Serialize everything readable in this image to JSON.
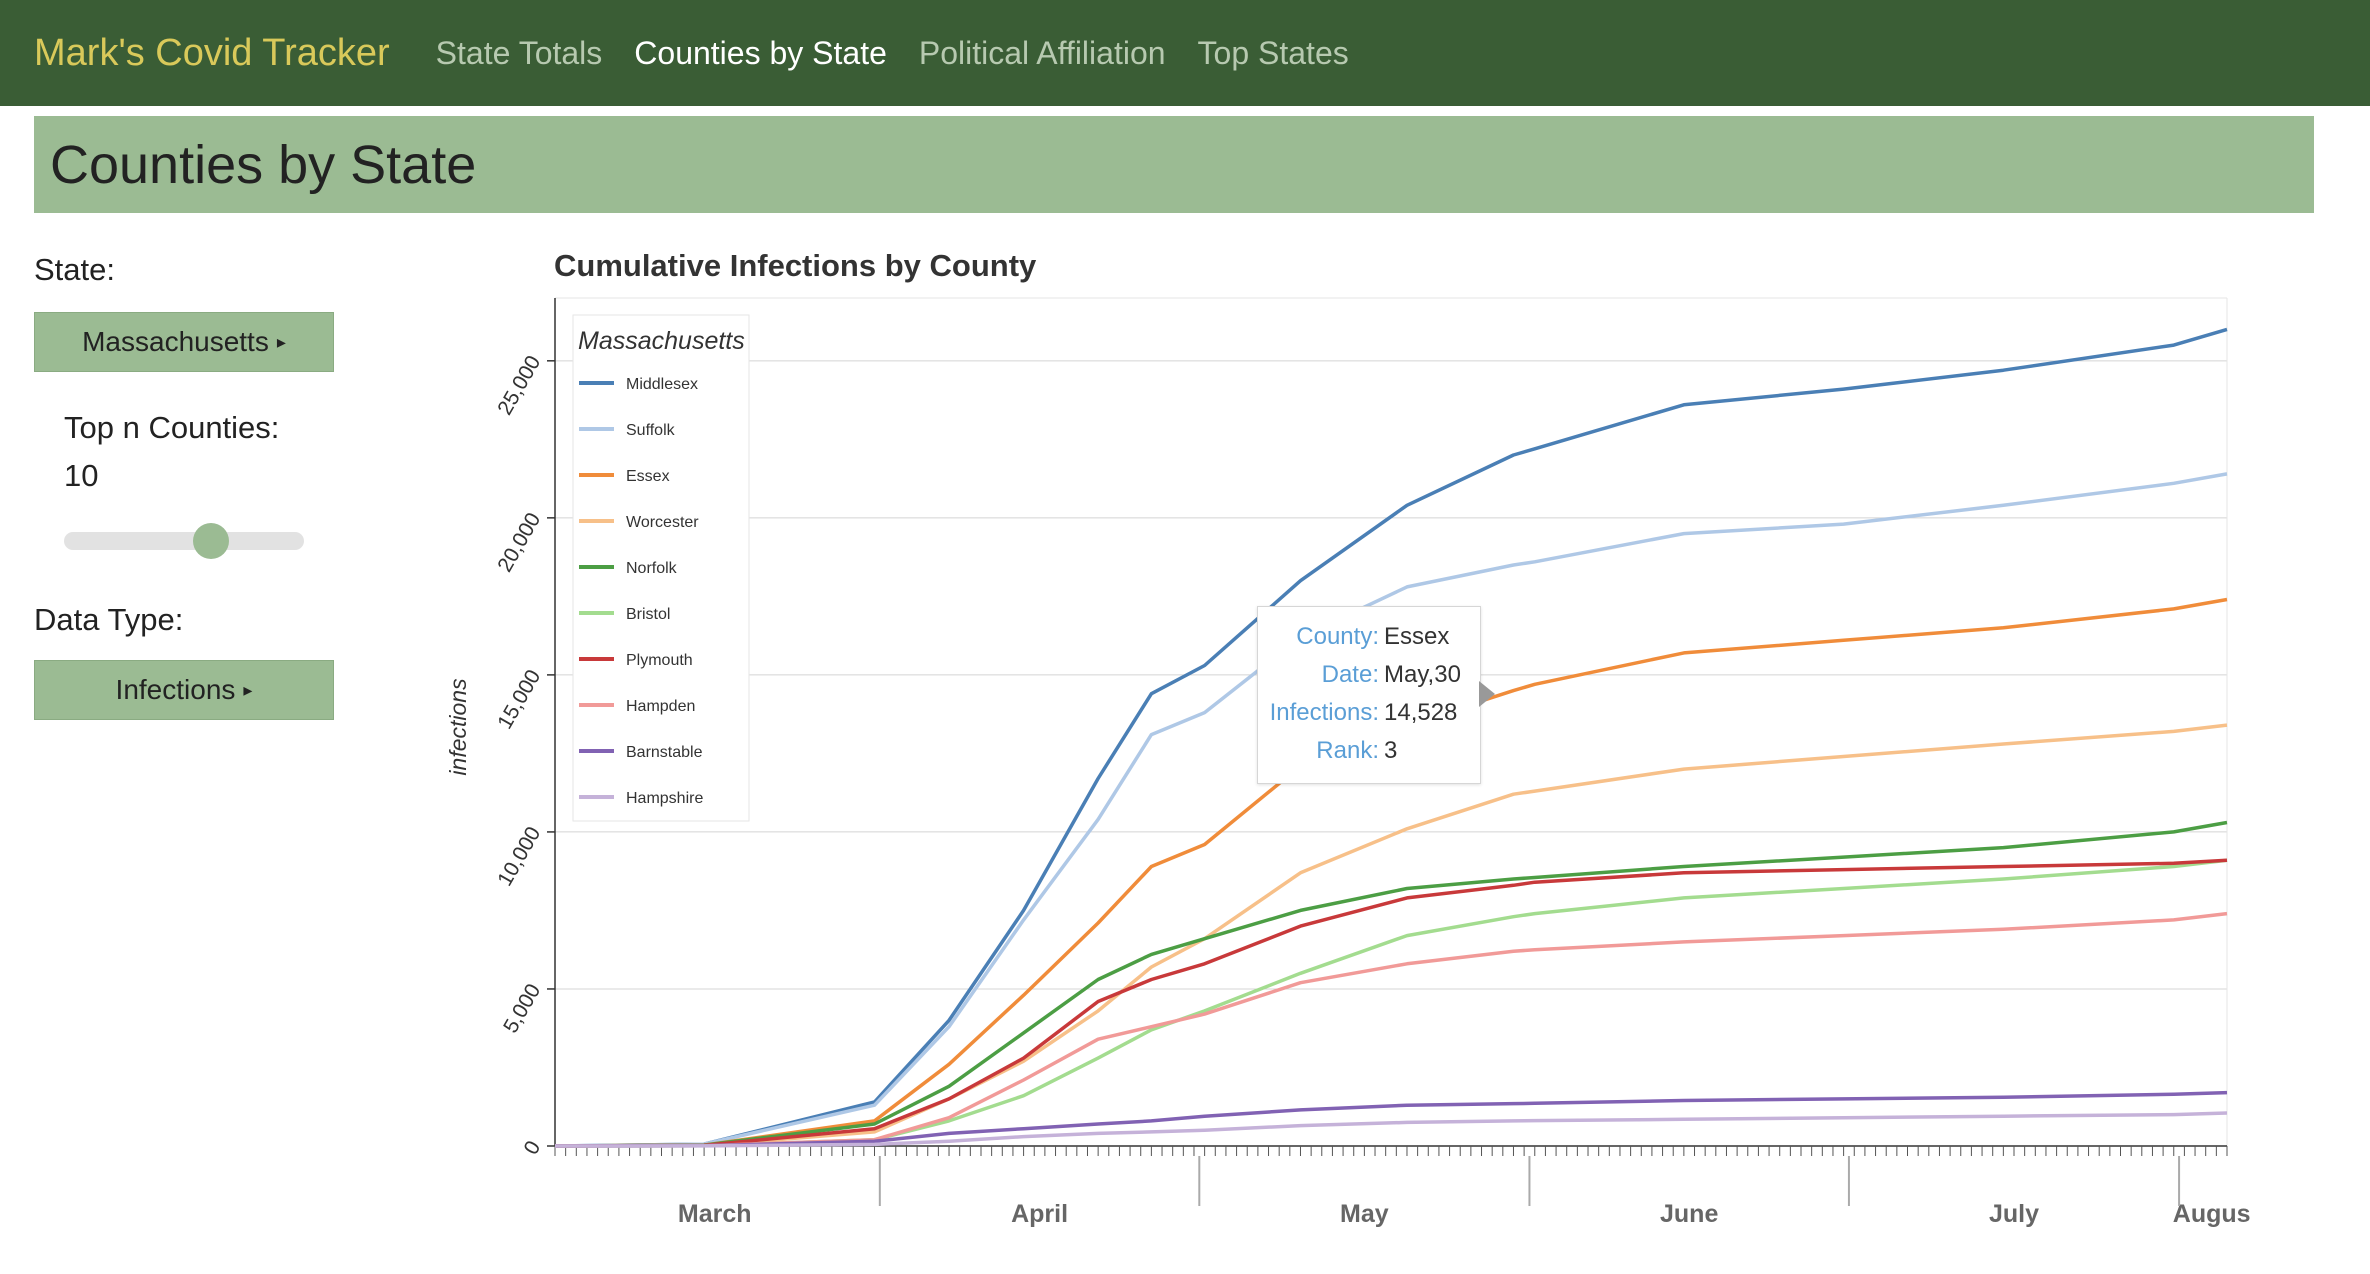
{
  "nav": {
    "brand": "Mark's Covid Tracker",
    "links": [
      "State Totals",
      "Counties by State",
      "Political Affiliation",
      "Top States"
    ],
    "active": "Counties by State"
  },
  "page_title": "Counties by State",
  "controls": {
    "state_label": "State:",
    "state_value": "Massachusetts",
    "top_n_label": "Top n Counties:",
    "top_n_value": "10",
    "top_n_slider_fraction": 0.6,
    "data_type_label": "Data Type:",
    "data_type_value": "Infections"
  },
  "tooltip": {
    "county_key": "County:",
    "county": "Essex",
    "date_key": "Date:",
    "date": "May,30",
    "infections_key": "Infections:",
    "infections": "14,528",
    "rank_key": "Rank:",
    "rank": "3"
  },
  "chart_data": {
    "type": "line",
    "title": "Cumulative Infections by County",
    "ylabel": "infections",
    "xlabel": "",
    "ylim": [
      0,
      27000
    ],
    "yticks": [
      0,
      5000,
      10000,
      15000,
      20000,
      25000
    ],
    "ytick_labels": [
      "0",
      "5,000",
      "10,000",
      "15,000",
      "20,000",
      "25,000"
    ],
    "legend_title": "Massachusetts",
    "legend_position": "top-left",
    "grid": "horizontal",
    "x": [
      "Mar 1",
      "Mar 15",
      "Mar 31",
      "Apr 7",
      "Apr 14",
      "Apr 21",
      "Apr 26",
      "May 1",
      "May 10",
      "May 20",
      "May 30",
      "Jun 1",
      "Jun 15",
      "Jun 30",
      "Jul 15",
      "Jul 31",
      "Aug 5"
    ],
    "months": [
      {
        "label": "March",
        "start": "Mar 1",
        "end": "Mar 31"
      },
      {
        "label": "April",
        "start": "Apr 1",
        "end": "Apr 30"
      },
      {
        "label": "May",
        "start": "May 1",
        "end": "May 31"
      },
      {
        "label": "June",
        "start": "Jun 1",
        "end": "Jun 30"
      },
      {
        "label": "July",
        "start": "Jul 1",
        "end": "Jul 31"
      },
      {
        "label": "Augus",
        "start": "Aug 1",
        "end": "Aug 5"
      }
    ],
    "series": [
      {
        "name": "Middlesex",
        "color": "#4a7fb5",
        "values": [
          0,
          60,
          1400,
          4000,
          7500,
          11700,
          14400,
          15300,
          18000,
          20400,
          22000,
          22200,
          23600,
          24100,
          24700,
          25500,
          26000
        ]
      },
      {
        "name": "Suffolk",
        "color": "#afc8e6",
        "values": [
          0,
          60,
          1300,
          3800,
          7200,
          10400,
          13100,
          13800,
          16200,
          17800,
          18500,
          18600,
          19500,
          19800,
          20400,
          21100,
          21400
        ]
      },
      {
        "name": "Essex",
        "color": "#f08c3a",
        "values": [
          0,
          30,
          800,
          2600,
          4800,
          7100,
          8900,
          9600,
          12100,
          13400,
          14500,
          14700,
          15700,
          16100,
          16500,
          17100,
          17400
        ]
      },
      {
        "name": "Worcester",
        "color": "#f7c089",
        "values": [
          0,
          20,
          450,
          1500,
          2700,
          4300,
          5700,
          6600,
          8700,
          10100,
          11200,
          11300,
          12000,
          12400,
          12800,
          13200,
          13400
        ]
      },
      {
        "name": "Norfolk",
        "color": "#4c9e44",
        "values": [
          0,
          30,
          700,
          1900,
          3600,
          5300,
          6100,
          6600,
          7500,
          8200,
          8500,
          8550,
          8900,
          9200,
          9500,
          10000,
          10300
        ]
      },
      {
        "name": "Bristol",
        "color": "#a3dc8f",
        "values": [
          0,
          10,
          200,
          800,
          1600,
          2800,
          3700,
          4300,
          5500,
          6700,
          7300,
          7400,
          7900,
          8200,
          8500,
          8900,
          9100
        ]
      },
      {
        "name": "Plymouth",
        "color": "#c8393a",
        "values": [
          0,
          20,
          550,
          1500,
          2800,
          4600,
          5300,
          5800,
          7000,
          7900,
          8300,
          8400,
          8700,
          8800,
          8900,
          9000,
          9100
        ]
      },
      {
        "name": "Hampden",
        "color": "#f19a98",
        "values": [
          0,
          10,
          200,
          900,
          2100,
          3400,
          3800,
          4200,
          5200,
          5800,
          6200,
          6250,
          6500,
          6700,
          6900,
          7200,
          7400
        ]
      },
      {
        "name": "Barnstable",
        "color": "#8162b3",
        "values": [
          0,
          5,
          150,
          400,
          550,
          700,
          800,
          950,
          1150,
          1300,
          1350,
          1360,
          1450,
          1500,
          1550,
          1650,
          1700
        ]
      },
      {
        "name": "Hampshire",
        "color": "#c5b2d9",
        "values": [
          0,
          2,
          50,
          150,
          300,
          400,
          450,
          500,
          650,
          750,
          800,
          810,
          850,
          900,
          950,
          1000,
          1050
        ]
      }
    ]
  }
}
